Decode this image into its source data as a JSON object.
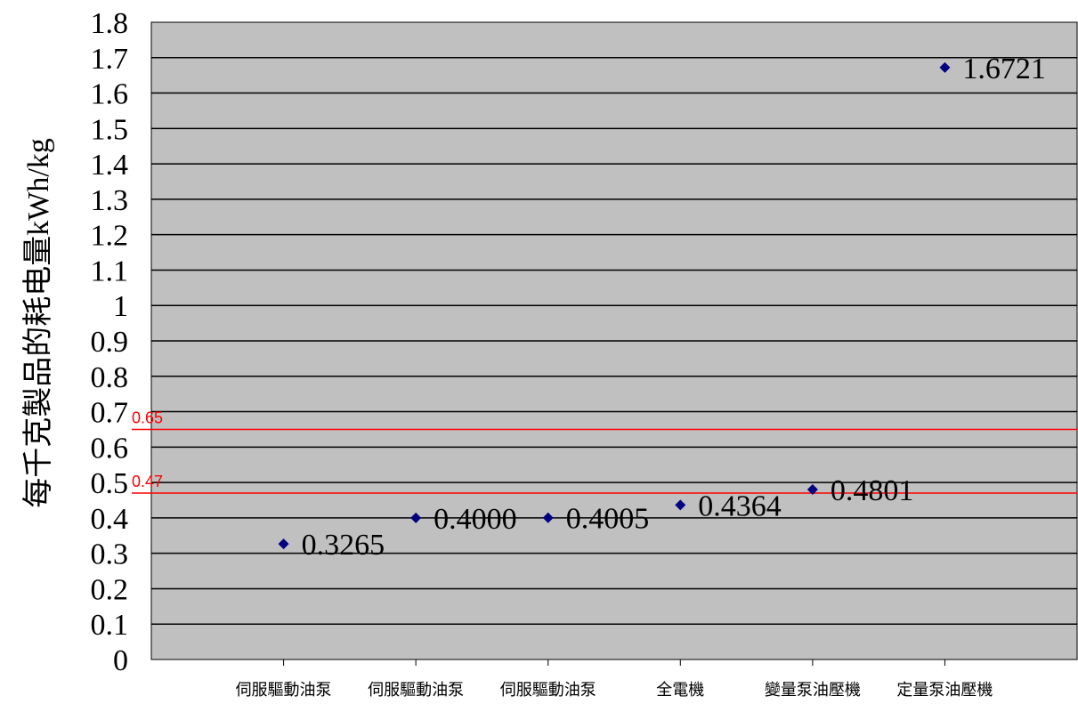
{
  "chart_data": {
    "type": "scatter",
    "categories": [
      "伺服驅動油泵",
      "伺服驅動油泵",
      "伺服驅動油泵",
      "全電機",
      "變量泵油壓機",
      "定量泵油壓機"
    ],
    "values": [
      0.3265,
      0.4,
      0.4005,
      0.4364,
      0.4801,
      1.6721
    ],
    "data_labels": [
      "0.3265",
      "0.4000",
      "0.4005",
      "0.4364",
      "0.4801",
      "1.6721"
    ],
    "ylabel": "每千克製品的耗电量kWh/kg",
    "xlabel": "",
    "title": "",
    "ylim": [
      0,
      1.8
    ],
    "y_ticks": [
      "0",
      "0.1",
      "0.2",
      "0.3",
      "0.4",
      "0.5",
      "0.6",
      "0.7",
      "0.8",
      "0.9",
      "1",
      "1.1",
      "1.2",
      "1.3",
      "1.4",
      "1.5",
      "1.6",
      "1.7",
      "1.8"
    ],
    "grid": true,
    "plot_background": "#c0c0c0",
    "marker_color": "#000080",
    "reference_lines": [
      {
        "value": 0.65,
        "label": "0.65",
        "color": "#ff0000"
      },
      {
        "value": 0.47,
        "label": "0.47",
        "color": "#ff0000"
      }
    ]
  }
}
